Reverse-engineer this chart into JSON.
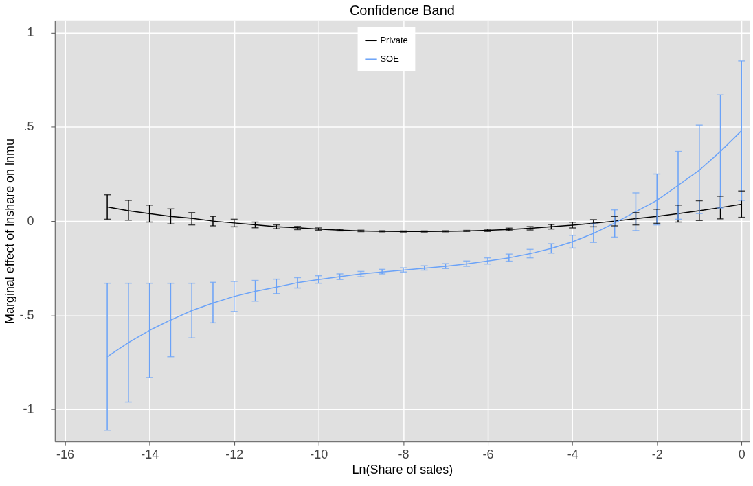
{
  "chart_data": {
    "type": "line",
    "title": "Confidence Band",
    "xlabel": "Ln(Share of sales)",
    "ylabel": "Marginal effect of lnshare on lnmu",
    "x": [
      -15,
      -14.5,
      -14,
      -13.5,
      -13,
      -12.5,
      -12,
      -11.5,
      -11,
      -10.5,
      -10,
      -9.5,
      -9,
      -8.5,
      -8,
      -7.5,
      -7,
      -6.5,
      -6,
      -5.5,
      -5,
      -4.5,
      -4,
      -3.5,
      -3,
      -2.5,
      -2,
      -1.5,
      -1,
      -0.5,
      0
    ],
    "series": [
      {
        "name": "Private",
        "color": "#000000",
        "values": [
          0.075,
          0.055,
          0.04,
          0.025,
          0.015,
          0.0,
          -0.01,
          -0.02,
          -0.03,
          -0.035,
          -0.042,
          -0.048,
          -0.052,
          -0.054,
          -0.055,
          -0.055,
          -0.054,
          -0.052,
          -0.049,
          -0.044,
          -0.038,
          -0.03,
          -0.021,
          -0.011,
          0.0,
          0.013,
          0.025,
          0.04,
          0.055,
          0.072,
          0.09
        ],
        "errors": [
          [
            0.01,
            0.14
          ],
          [
            0.005,
            0.11
          ],
          [
            -0.005,
            0.085
          ],
          [
            -0.015,
            0.065
          ],
          [
            -0.02,
            0.045
          ],
          [
            -0.025,
            0.025
          ],
          [
            -0.03,
            0.01
          ],
          [
            -0.035,
            -0.005
          ],
          [
            -0.04,
            -0.02
          ],
          [
            -0.045,
            -0.028
          ],
          [
            -0.048,
            -0.036
          ],
          [
            -0.052,
            -0.044
          ],
          [
            -0.056,
            -0.048
          ],
          [
            -0.057,
            -0.051
          ],
          [
            -0.058,
            -0.052
          ],
          [
            -0.058,
            -0.052
          ],
          [
            -0.057,
            -0.051
          ],
          [
            -0.055,
            -0.049
          ],
          [
            -0.055,
            -0.043
          ],
          [
            -0.05,
            -0.037
          ],
          [
            -0.047,
            -0.029
          ],
          [
            -0.042,
            -0.018
          ],
          [
            -0.036,
            -0.006
          ],
          [
            -0.03,
            0.008
          ],
          [
            -0.025,
            0.025
          ],
          [
            -0.02,
            0.045
          ],
          [
            -0.012,
            0.063
          ],
          [
            -0.005,
            0.085
          ],
          [
            0.003,
            0.108
          ],
          [
            0.012,
            0.132
          ],
          [
            0.02,
            0.16
          ]
        ]
      },
      {
        "name": "SOE",
        "color": "#6aa2f8",
        "values": [
          -0.72,
          -0.645,
          -0.58,
          -0.525,
          -0.475,
          -0.435,
          -0.4,
          -0.373,
          -0.35,
          -0.327,
          -0.31,
          -0.295,
          -0.28,
          -0.27,
          -0.26,
          -0.25,
          -0.24,
          -0.227,
          -0.212,
          -0.195,
          -0.173,
          -0.145,
          -0.11,
          -0.065,
          -0.01,
          0.05,
          0.11,
          0.19,
          0.27,
          0.37,
          0.48
        ],
        "errors": [
          [
            -1.11,
            -0.33
          ],
          [
            -0.96,
            -0.33
          ],
          [
            -0.83,
            -0.33
          ],
          [
            -0.72,
            -0.33
          ],
          [
            -0.62,
            -0.33
          ],
          [
            -0.54,
            -0.325
          ],
          [
            -0.48,
            -0.32
          ],
          [
            -0.425,
            -0.315
          ],
          [
            -0.385,
            -0.308
          ],
          [
            -0.355,
            -0.3
          ],
          [
            -0.33,
            -0.29
          ],
          [
            -0.31,
            -0.28
          ],
          [
            -0.295,
            -0.267
          ],
          [
            -0.28,
            -0.256
          ],
          [
            -0.27,
            -0.248
          ],
          [
            -0.26,
            -0.237
          ],
          [
            -0.252,
            -0.226
          ],
          [
            -0.24,
            -0.212
          ],
          [
            -0.228,
            -0.195
          ],
          [
            -0.213,
            -0.175
          ],
          [
            -0.195,
            -0.15
          ],
          [
            -0.17,
            -0.12
          ],
          [
            -0.143,
            -0.075
          ],
          [
            -0.113,
            -0.015
          ],
          [
            -0.085,
            0.06
          ],
          [
            -0.05,
            0.15
          ],
          [
            -0.02,
            0.25
          ],
          [
            0.01,
            0.37
          ],
          [
            0.04,
            0.51
          ],
          [
            0.07,
            0.67
          ],
          [
            0.11,
            0.85
          ]
        ]
      }
    ],
    "xlim": [
      -16.24,
      0.19
    ],
    "xticks": [
      -16,
      -14,
      -12,
      -10,
      -8,
      -6,
      -4,
      -2,
      0
    ],
    "ylim": [
      -1.17,
      1.065
    ],
    "yticks": [
      {
        "value": -1,
        "label": "-1"
      },
      {
        "value": -0.5,
        "label": "-.5"
      },
      0,
      {
        "value": 0.5,
        "label": ".5"
      },
      1
    ],
    "grid": true,
    "legend": "top",
    "marker": "none",
    "line_style": "solid"
  }
}
